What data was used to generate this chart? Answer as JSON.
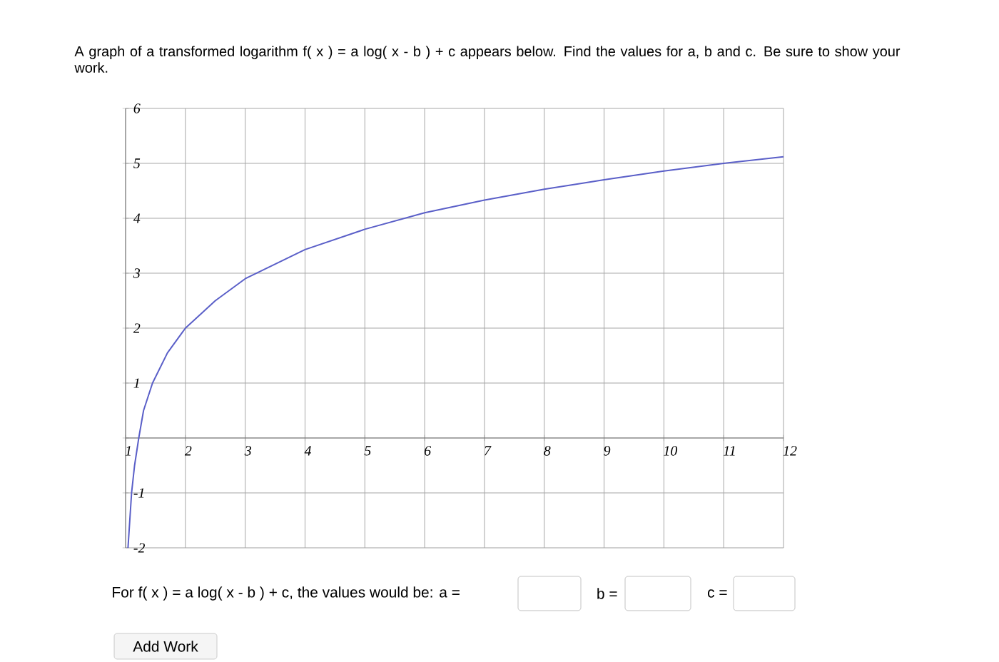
{
  "chart_data": {
    "type": "line",
    "title": "A graph of a transformed logarithm f( x ) = a log( x - b ) + c appears below. Find the values for a, b and c. Be sure to show your work.",
    "x": [
      1.04,
      1.07,
      1.1,
      1.15,
      1.22,
      1.3,
      1.45,
      1.7,
      2,
      2.5,
      3,
      4,
      5,
      6,
      7,
      8,
      9,
      10,
      11,
      12
    ],
    "values": [
      -2,
      -1.5,
      -1,
      -0.5,
      0,
      0.5,
      1,
      1.55,
      2,
      2.5,
      2.9,
      3.43,
      3.8,
      4.1,
      4.33,
      4.53,
      4.7,
      4.86,
      5.0,
      5.12
    ],
    "color": "#5a5fc8",
    "xlim": [
      1,
      12
    ],
    "ylim": [
      -2,
      6
    ],
    "xticks": [
      1,
      2,
      3,
      4,
      5,
      6,
      7,
      8,
      9,
      10,
      11,
      12
    ],
    "yticks": [
      -2,
      -1,
      {
        "value": 0,
        "label": null
      },
      1,
      2,
      3,
      4,
      5,
      6
    ],
    "grid": true,
    "annotations": [
      "For f( x ) = a log( x - b ) + c, the values would be: a =",
      "b =",
      "c =",
      "Add Work"
    ]
  }
}
